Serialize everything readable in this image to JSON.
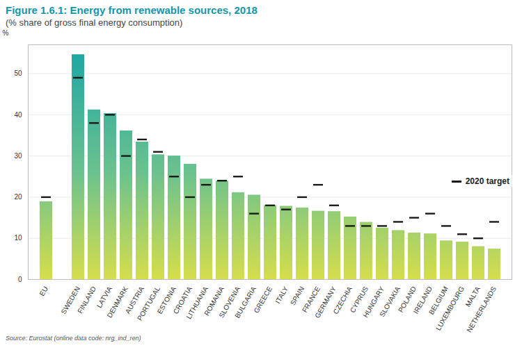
{
  "chart_data": {
    "type": "bar",
    "title": "Figure 1.6.1: Energy from renewable sources, 2018",
    "subtitle": "(% share of gross final energy consumption)",
    "source": "Source: Eurostat (online data code: nrg_ind_ren)",
    "y_label": "%",
    "categories": [
      "EU",
      null,
      "SWEDEN",
      "FINLAND",
      "LATVIA",
      "DENMARK",
      "AUSTRIA",
      "PORTUGAL",
      "ESTONIA",
      "CROATIA",
      "LITHUANIA",
      "ROMANIA",
      "SLOVENIA",
      "BULGARIA",
      "GREECE",
      "ITALY",
      "SPAIN",
      "FRANCE",
      "GERMANY",
      "CZECHIA",
      "CYPRUS",
      "HUNGARY",
      "SLOVAKIA",
      "POLAND",
      "IRELAND",
      "BELGIUM",
      "LUXEMBOURG",
      "MALTA",
      "NETHERLANDS"
    ],
    "values": [
      18.9,
      null,
      54.6,
      41.2,
      40.3,
      36.1,
      33.4,
      30.3,
      30.0,
      28.0,
      24.4,
      23.9,
      21.1,
      20.5,
      18.0,
      17.8,
      17.4,
      16.6,
      16.5,
      15.2,
      13.9,
      12.5,
      11.9,
      11.3,
      11.1,
      9.4,
      9.1,
      8.0,
      7.4
    ],
    "color": "#1aa5a5",
    "series": [
      {
        "name": "2020 target",
        "type": "tick",
        "color": "#1a1a1a",
        "values": [
          20,
          null,
          49,
          38,
          40,
          30,
          34,
          31,
          25,
          20,
          23,
          24,
          25,
          16,
          18,
          17,
          20,
          23,
          18,
          13,
          13,
          13,
          14,
          15,
          16,
          13,
          11,
          10,
          14
        ]
      }
    ],
    "ylim": [
      0,
      57
    ],
    "yticks": [
      0,
      10,
      20,
      30,
      40,
      50
    ],
    "grid": true,
    "legend": "right"
  }
}
